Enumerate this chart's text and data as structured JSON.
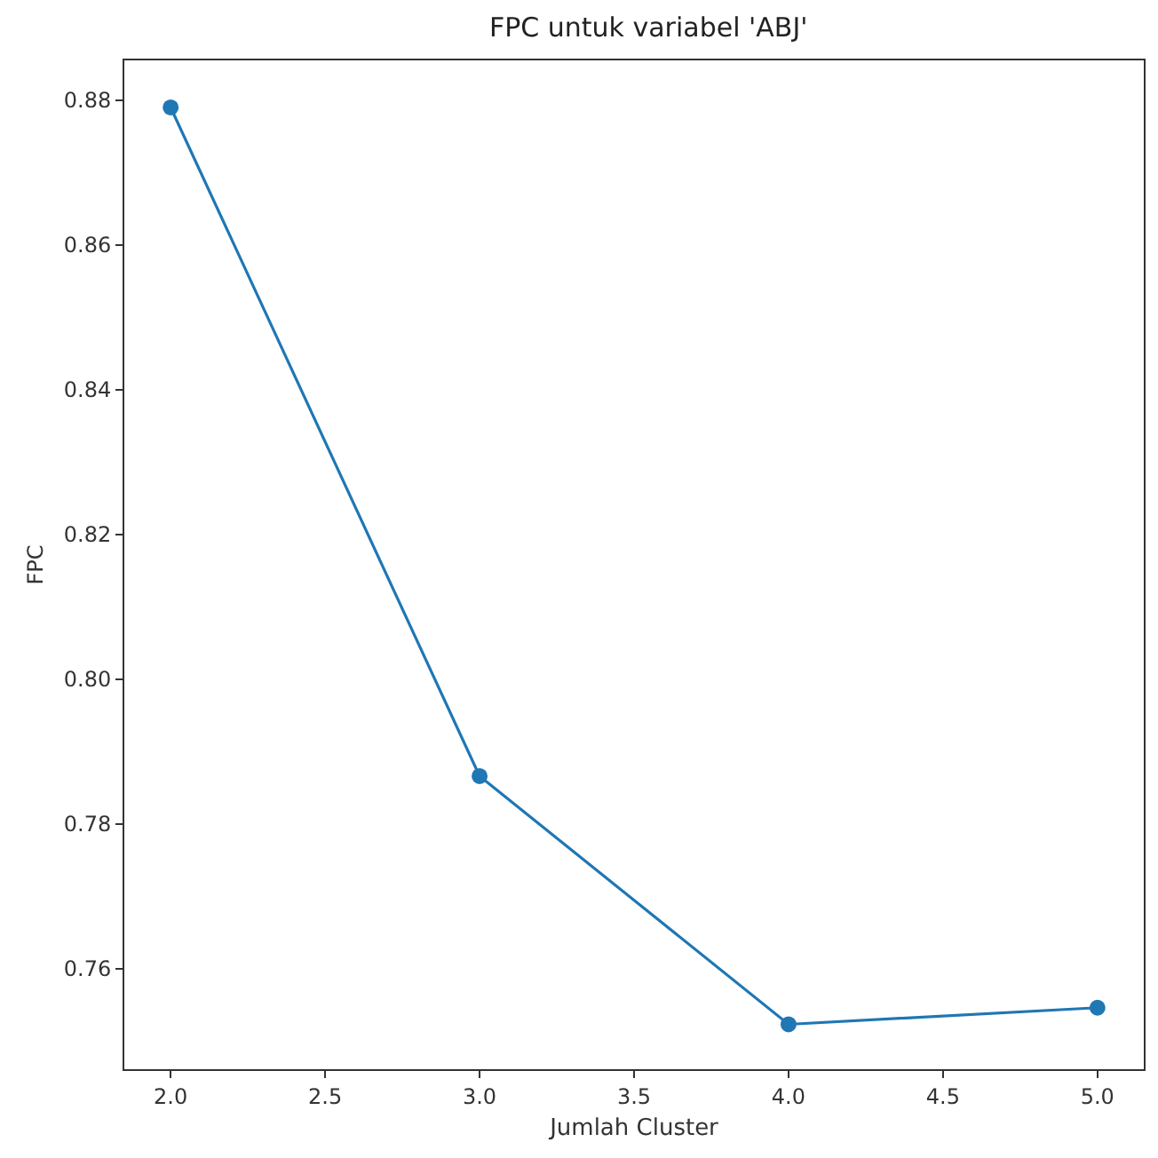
{
  "chart_data": {
    "type": "line",
    "title": "FPC untuk variabel 'ABJ'",
    "xlabel": "Jumlah Cluster",
    "ylabel": "FPC",
    "x": [
      2,
      3,
      4,
      5
    ],
    "series": [
      {
        "color": "#1f77b4",
        "values": [
          0.879,
          0.7866,
          0.7523,
          0.7546
        ]
      }
    ],
    "marker": "circle",
    "line_style": "solid",
    "xlim": [
      1.85,
      5.15
    ],
    "xticks": [
      {
        "value": 2,
        "label": "2.0"
      },
      {
        "value": 2.5,
        "label": "2.5"
      },
      {
        "value": 3,
        "label": "3.0"
      },
      {
        "value": 3.5,
        "label": "3.5"
      },
      {
        "value": 4,
        "label": "4.0"
      },
      {
        "value": 4.5,
        "label": "4.5"
      },
      {
        "value": 5,
        "label": "5.0"
      }
    ],
    "ylim": [
      0.7461,
      0.8855
    ],
    "yticks": [
      {
        "value": 0.76,
        "label": "0.76"
      },
      {
        "value": 0.78,
        "label": "0.78"
      },
      {
        "value": 0.8,
        "label": "0.80"
      },
      {
        "value": 0.82,
        "label": "0.82"
      },
      {
        "value": 0.84,
        "label": "0.84"
      },
      {
        "value": 0.86,
        "label": "0.86"
      },
      {
        "value": 0.88,
        "label": "0.88"
      }
    ]
  }
}
